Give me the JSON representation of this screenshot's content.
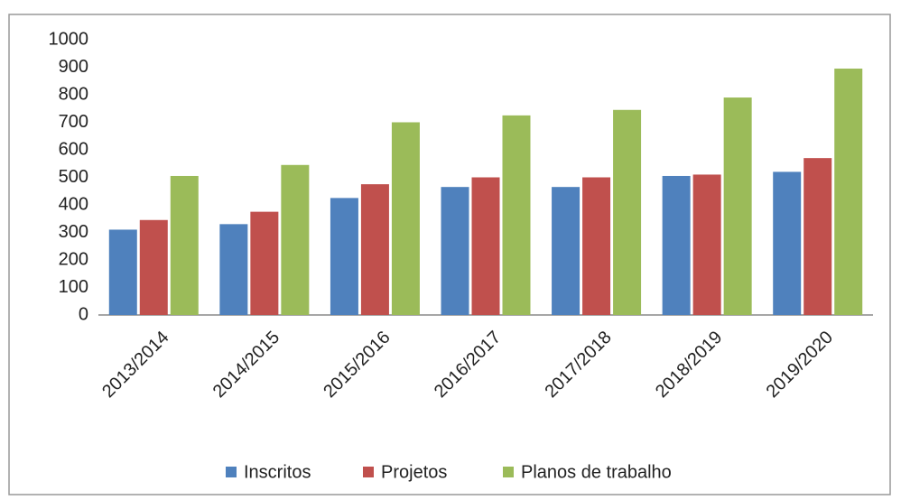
{
  "chart_data": {
    "type": "bar",
    "categories": [
      "2013/2014",
      "2014/2015",
      "2015/2016",
      "2016/2017",
      "2017/2018",
      "2018/2019",
      "2019/2020"
    ],
    "series": [
      {
        "name": "Inscritos",
        "color": "#4f81bd",
        "values": [
          310,
          330,
          425,
          465,
          465,
          505,
          520
        ]
      },
      {
        "name": "Projetos",
        "color": "#c0504d",
        "values": [
          345,
          375,
          475,
          500,
          500,
          510,
          570
        ]
      },
      {
        "name": "Planos de trabalho",
        "color": "#9bbb59",
        "values": [
          505,
          545,
          700,
          725,
          745,
          790,
          895
        ]
      }
    ],
    "ylim": [
      0,
      1000
    ],
    "yticks": [
      0,
      100,
      200,
      300,
      400,
      500,
      600,
      700,
      800,
      900,
      1000
    ],
    "grid": false,
    "legend": "bottom"
  }
}
